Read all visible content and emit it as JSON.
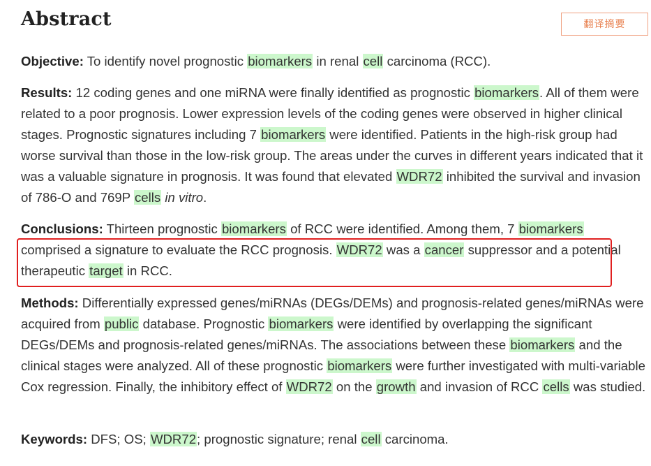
{
  "heading": "Abstract",
  "translate_button": "翻译摘要",
  "objective": {
    "label": "Objective:",
    "t1": " To identify novel prognostic ",
    "h1": "biomarkers",
    "t2": " in renal ",
    "h2": "cell",
    "t3": " carcinoma (RCC)."
  },
  "results": {
    "label": "Results:",
    "t1": " 12 coding genes and one miRNA were finally identified as prognostic ",
    "h1": "biomarkers",
    "t2": ". All of them were related to a poor prognosis. Lower expression levels of the coding genes were observed in higher clinical stages. Prognostic signatures including 7 ",
    "h2": "biomarkers",
    "t3": " were identified. Patients in the high-risk group had worse survival than those in the low-risk group. The areas under the curves in different years indicated that it was a valuable signature in prognosis. It was found that elevated ",
    "h3": "WDR72",
    "t4": " inhibited the survival and invasion of 786-O and 769P ",
    "h4": "cells",
    "t5": " ",
    "italic": "in vitro",
    "t6": "."
  },
  "conclusions": {
    "label": "Conclusions:",
    "t1": " Thirteen prognostic ",
    "h1": "biomarkers",
    "t2": " of RCC were identified. Among them, 7 ",
    "h2": "biomarkers",
    "t3": " comprised a signature to evaluate the RCC prognosis. ",
    "h3": "WDR72",
    "t4": " was a ",
    "h4": "cancer",
    "t5": " suppressor and a potential therapeutic ",
    "h5": "target",
    "t6": " in RCC."
  },
  "methods": {
    "label": "Methods:",
    "t1": " Differentially expressed genes/miRNAs (DEGs/DEMs) and prognosis-related genes/miRNAs were acquired from ",
    "h1": "public",
    "t2": " database. Prognostic ",
    "h2": "biomarkers",
    "t3": " were identified by overlapping the significant DEGs/DEMs and prognosis-related genes/miRNAs. The associations between these ",
    "h3": "biomarkers",
    "t4": " and the clinical stages were analyzed. All of these prognostic ",
    "h4": "biomarkers",
    "t5": " were further investigated with multi-variable Cox regression. Finally, the inhibitory effect of ",
    "h5": "WDR72",
    "t6": " on the ",
    "h6": "growth",
    "t7": " and invasion of RCC ",
    "h7": "cells",
    "t8": " was studied."
  },
  "keywords": {
    "label": "Keywords:",
    "t1": " DFS; OS; ",
    "h1": "WDR72",
    "t2": "; prognostic signature; renal ",
    "h2": "cell",
    "t3": " carcinoma."
  },
  "colors": {
    "highlight": "#ccf7cc",
    "annotation_box": "#e01f1f",
    "button_accent": "#e8804f"
  }
}
